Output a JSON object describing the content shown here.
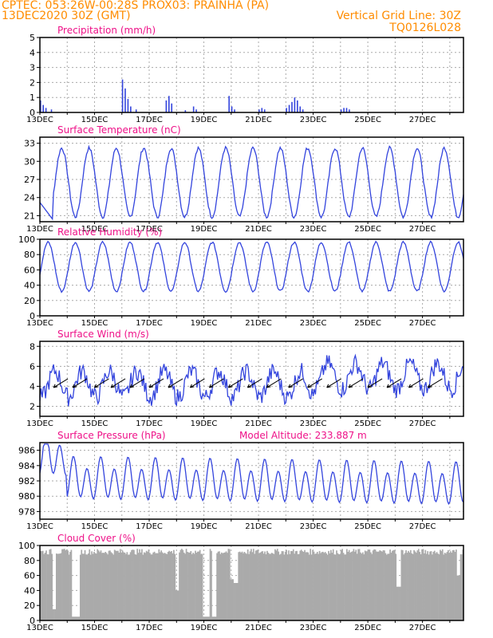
{
  "header": {
    "line1": "CPTEC:   053:26W-00:28S   PROX03: PRAINHA (PA)",
    "line2": "13DEC2020 30Z (GMT)",
    "gridline": "Vertical Grid Line: 30Z",
    "code": "TQ0126L028"
  },
  "colors": {
    "series": "#3344dd",
    "title": "#ee1188",
    "header": "#ff8c00",
    "cloud": "#aaaaaa"
  },
  "chart_data": [
    {
      "type": "bar",
      "title": "Precipitation (mm/h)",
      "ylim": [
        0,
        5
      ],
      "yticks": [
        0,
        1,
        2,
        3,
        4,
        5
      ],
      "xlabels": [
        "13DEC",
        "15DEC",
        "17DEC",
        "19DEC",
        "21DEC",
        "23DEC",
        "25DEC",
        "27DEC"
      ],
      "values": [
        [
          0.0,
          0.8
        ],
        [
          0.1,
          0.5
        ],
        [
          0.2,
          0.3
        ],
        [
          0.4,
          0.2
        ],
        [
          3.0,
          2.2
        ],
        [
          3.1,
          1.6
        ],
        [
          3.2,
          0.9
        ],
        [
          3.3,
          0.4
        ],
        [
          3.5,
          0.2
        ],
        [
          4.6,
          0.8
        ],
        [
          4.7,
          1.1
        ],
        [
          4.8,
          0.6
        ],
        [
          5.3,
          0.15
        ],
        [
          5.6,
          0.4
        ],
        [
          5.7,
          0.2
        ],
        [
          6.9,
          1.1
        ],
        [
          7.0,
          0.4
        ],
        [
          7.1,
          0.2
        ],
        [
          8.0,
          0.2
        ],
        [
          8.1,
          0.3
        ],
        [
          8.2,
          0.2
        ],
        [
          9.0,
          0.3
        ],
        [
          9.1,
          0.5
        ],
        [
          9.2,
          0.7
        ],
        [
          9.3,
          1.0
        ],
        [
          9.4,
          0.8
        ],
        [
          9.5,
          0.4
        ],
        [
          9.6,
          0.2
        ],
        [
          11.0,
          0.2
        ],
        [
          11.1,
          0.3
        ],
        [
          11.2,
          0.3
        ],
        [
          11.3,
          0.2
        ]
      ]
    },
    {
      "type": "line",
      "title": "Surface Temperature (nC)",
      "ylim": [
        20,
        34
      ],
      "yticks": [
        21,
        24,
        27,
        30,
        33
      ],
      "xlabels": [
        "13DEC",
        "15DEC",
        "17DEC",
        "19DEC",
        "21DEC",
        "23DEC",
        "25DEC",
        "27DEC"
      ],
      "days": 15.5,
      "mean": 26.5,
      "amplitude": 5.7,
      "start_value": 23.2
    },
    {
      "type": "line",
      "title": "Relative Humidity (%)",
      "ylim": [
        0,
        100
      ],
      "yticks": [
        0,
        20,
        40,
        60,
        80,
        100
      ],
      "xlabels": [
        "13DEC",
        "15DEC",
        "17DEC",
        "19DEC",
        "21DEC",
        "23DEC",
        "25DEC",
        "27DEC"
      ],
      "days": 15.5,
      "mean": 64,
      "amplitude": 32
    },
    {
      "type": "line",
      "title": "Surface Wind (m/s)",
      "ylim": [
        1,
        8.5
      ],
      "yticks": [
        2,
        4,
        6,
        8
      ],
      "xlabels": [
        "13DEC",
        "15DEC",
        "17DEC",
        "19DEC",
        "21DEC",
        "23DEC",
        "25DEC",
        "27DEC"
      ],
      "days": 15.5,
      "mean": 4.2,
      "amplitude": 1.3,
      "arrow_days": [
        0.5,
        1.2,
        2.0,
        2.6,
        3.3,
        4.0,
        4.7,
        5.5,
        6.2,
        6.9,
        7.6,
        8.3,
        9.1,
        9.8,
        10.5,
        11.3,
        12.0,
        12.7,
        13.5,
        14.2
      ]
    },
    {
      "type": "line",
      "title": "Surface Pressure (hPa)",
      "annotation": "Model Altitude: 233.887  m",
      "ylim": [
        977,
        987
      ],
      "yticks": [
        978,
        980,
        982,
        984,
        986
      ],
      "xlabels": [
        "13DEC",
        "15DEC",
        "17DEC",
        "19DEC",
        "21DEC",
        "23DEC",
        "25DEC",
        "27DEC"
      ],
      "days": 15.5,
      "mean": 982.2,
      "amplitude": 2.3
    },
    {
      "type": "bar",
      "title": "Cloud Cover (%)",
      "ylim": [
        0,
        100
      ],
      "yticks": [
        0,
        20,
        40,
        60,
        80,
        100
      ],
      "xlabels": [
        "13DEC",
        "15DEC",
        "17DEC",
        "19DEC",
        "21DEC",
        "23DEC",
        "25DEC",
        "27DEC"
      ],
      "days": 15.5,
      "typical": 90,
      "dips": [
        [
          0.5,
          15
        ],
        [
          1.2,
          5
        ],
        [
          1.35,
          5
        ],
        [
          5.0,
          40
        ],
        [
          6.0,
          5
        ],
        [
          6.1,
          5
        ],
        [
          6.35,
          5
        ],
        [
          7.0,
          55
        ],
        [
          7.15,
          50
        ],
        [
          13.1,
          45
        ],
        [
          15.3,
          60
        ]
      ]
    }
  ]
}
